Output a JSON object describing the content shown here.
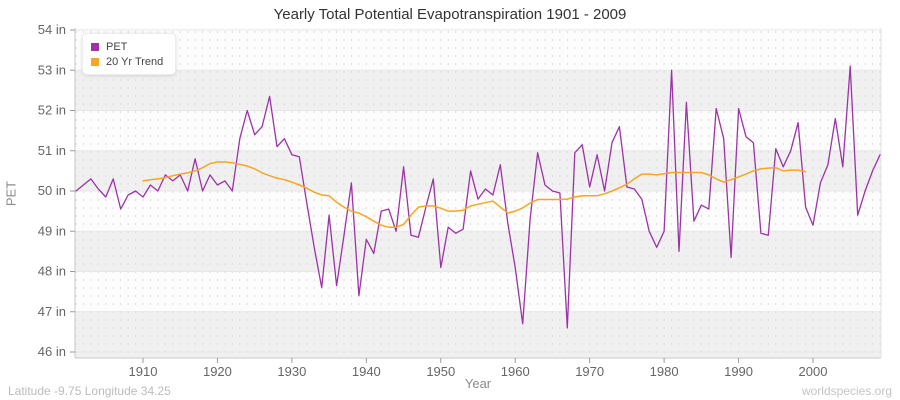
{
  "page": {
    "title": "Yearly Total Potential Evapotranspiration 1901 - 2009",
    "footer_left": "Latitude -9.75 Longitude 34.25",
    "footer_right": "worldspecies.org"
  },
  "chart_data": {
    "type": "line",
    "title": "Yearly Total Potential Evapotranspiration 1901 - 2009",
    "xlabel": "Year",
    "ylabel": "PET",
    "unit": "in",
    "xlim": [
      1901,
      2009
    ],
    "ylim": [
      46,
      54
    ],
    "grid": "horizontal-bands with yearly dashed vertical gridlines",
    "legend_position": "top-left",
    "x_ticks": [
      1910,
      1920,
      1930,
      1940,
      1950,
      1960,
      1970,
      1980,
      1990,
      2000
    ],
    "y_tick_values": [
      46,
      47,
      48,
      49,
      50,
      51,
      52,
      53,
      54
    ],
    "y_tick_labels": [
      "46 in",
      "47 in",
      "48 in",
      "49 in",
      "50 in",
      "51 in",
      "52 in",
      "53 in",
      "54 in"
    ],
    "legend": [
      {
        "name": "PET",
        "color": "#9C33A6"
      },
      {
        "name": "20 Yr Trend",
        "color": "#F6A623"
      }
    ],
    "series": [
      {
        "name": "PET",
        "color": "#9C33A6",
        "x_start": 1910,
        "x_first_year": 1901,
        "values": [
          50.0,
          50.15,
          50.3,
          50.05,
          49.85,
          50.3,
          49.55,
          49.9,
          50.0,
          49.85,
          50.15,
          50.0,
          50.4,
          50.25,
          50.4,
          50.0,
          50.8,
          50.0,
          50.4,
          50.15,
          50.25,
          50.0,
          51.3,
          52.0,
          51.4,
          51.6,
          52.35,
          51.1,
          51.3,
          50.9,
          50.85,
          49.7,
          48.6,
          47.6,
          49.4,
          47.65,
          48.9,
          50.2,
          47.4,
          48.8,
          48.45,
          49.5,
          49.55,
          49.0,
          50.6,
          48.9,
          48.85,
          49.6,
          50.3,
          48.1,
          49.1,
          48.95,
          49.05,
          50.5,
          49.8,
          50.05,
          49.9,
          50.65,
          49.2,
          48.1,
          46.7,
          49.3,
          50.95,
          50.15,
          50.0,
          49.95,
          46.6,
          50.95,
          51.15,
          50.1,
          50.9,
          50.0,
          51.2,
          51.6,
          50.1,
          50.05,
          49.8,
          49.0,
          48.6,
          49.0,
          53.0,
          48.5,
          52.2,
          49.25,
          49.65,
          49.55,
          52.05,
          51.3,
          48.35,
          52.05,
          51.35,
          51.2,
          48.95,
          48.9,
          51.05,
          50.6,
          51.0,
          51.7,
          49.6,
          49.15,
          50.2,
          50.65,
          51.8,
          50.6,
          53.1,
          49.4,
          50.0,
          50.5,
          50.9
        ]
      },
      {
        "name": "20 Yr Trend",
        "color": "#F6A623",
        "x_first_year": 1910,
        "values": [
          50.25,
          50.28,
          50.3,
          50.33,
          50.38,
          50.42,
          50.45,
          50.5,
          50.58,
          50.68,
          50.72,
          50.72,
          50.7,
          50.66,
          50.62,
          50.55,
          50.45,
          50.38,
          50.32,
          50.28,
          50.22,
          50.15,
          50.07,
          49.97,
          49.9,
          49.88,
          49.72,
          49.6,
          49.5,
          49.45,
          49.36,
          49.25,
          49.15,
          49.1,
          49.1,
          49.17,
          49.4,
          49.6,
          49.63,
          49.63,
          49.57,
          49.5,
          49.5,
          49.52,
          49.63,
          49.67,
          49.71,
          49.75,
          49.6,
          49.45,
          49.5,
          49.58,
          49.7,
          49.79,
          49.79,
          49.79,
          49.79,
          49.8,
          49.85,
          49.88,
          49.88,
          49.88,
          49.93,
          50.0,
          50.08,
          50.17,
          50.3,
          50.42,
          50.42,
          50.4,
          50.43,
          50.46,
          50.46,
          50.46,
          50.46,
          50.46,
          50.4,
          50.3,
          50.22,
          50.28,
          50.35,
          50.42,
          50.5,
          50.55,
          50.57,
          50.58,
          50.5,
          50.52,
          50.52,
          50.48
        ]
      }
    ]
  }
}
